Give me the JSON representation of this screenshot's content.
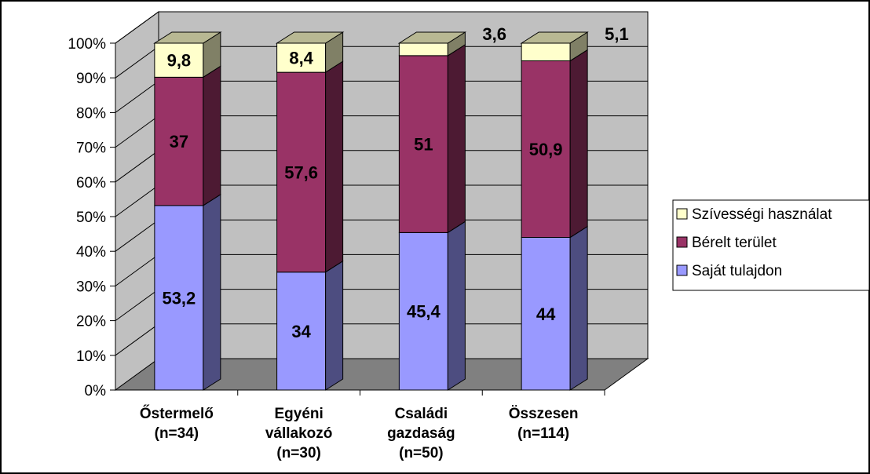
{
  "chart_data": {
    "type": "bar",
    "stacked": true,
    "percent_stacked": true,
    "three_d": true,
    "categories": [
      [
        "Őstermelő",
        "(n=34)"
      ],
      [
        "Egyéni",
        "vállakozó",
        "(n=30)"
      ],
      [
        "Családi",
        "gazdaság",
        "(n=50)"
      ],
      [
        "Összesen",
        "(n=114)"
      ]
    ],
    "series": [
      {
        "name": "Saját tulajdon",
        "values": [
          53.2,
          34,
          45.4,
          44
        ],
        "labels": [
          "53,2",
          "34",
          "45,4",
          "44"
        ],
        "color": "#9999ff"
      },
      {
        "name": "Bérelt terület",
        "values": [
          37,
          57.6,
          51,
          50.9
        ],
        "labels": [
          "37",
          "57,6",
          "51",
          "50,9"
        ],
        "color": "#993366"
      },
      {
        "name": "Szívességi használat",
        "values": [
          9.8,
          8.4,
          3.6,
          5.1
        ],
        "labels": [
          "9,8",
          "8,4",
          "3,6",
          "5,1"
        ],
        "color": "#ffffcc"
      }
    ],
    "y_ticks": [
      "0%",
      "10%",
      "20%",
      "30%",
      "40%",
      "50%",
      "60%",
      "70%",
      "80%",
      "90%",
      "100%"
    ],
    "ylim": [
      0,
      100
    ],
    "grid": true,
    "legend_position": "right",
    "wall_color": "#c0c0c0",
    "floor_color": "#808080"
  }
}
